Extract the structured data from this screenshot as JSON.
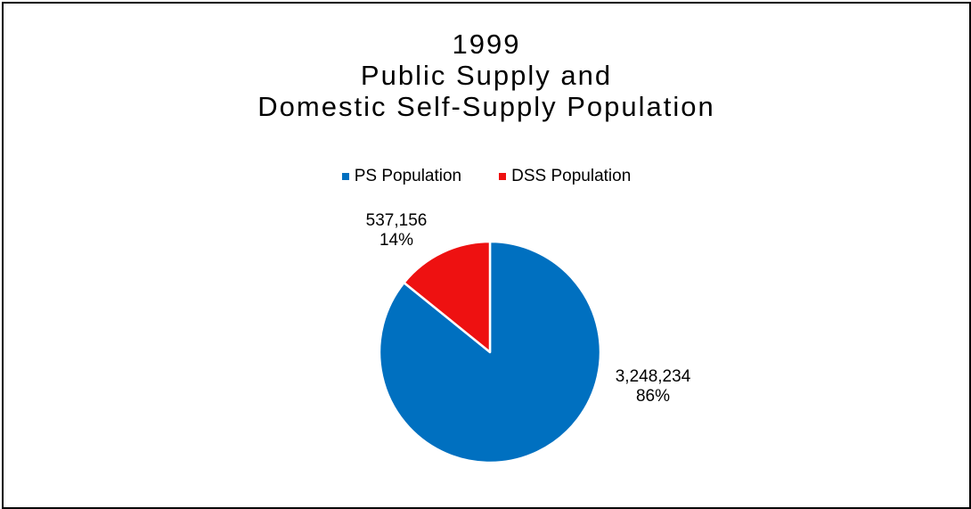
{
  "chart_data": {
    "type": "pie",
    "title": "1999\nPublic Supply and\nDomestic Self-Supply Population",
    "title_lines": [
      "1999",
      "Public Supply and",
      "Domestic Self-Supply Population"
    ],
    "legend": {
      "placement": "top",
      "entries": [
        "PS Population",
        "DSS Population"
      ]
    },
    "categories": [
      "PS Population",
      "DSS Population"
    ],
    "values": [
      3248234,
      537156
    ],
    "percentages": [
      "86%",
      "14%"
    ],
    "data_labels": [
      {
        "value": "3,248,234",
        "percent": "86%"
      },
      {
        "value": "537,156",
        "percent": "14%"
      }
    ],
    "colors": [
      "#0070C0",
      "#EE1111"
    ]
  }
}
